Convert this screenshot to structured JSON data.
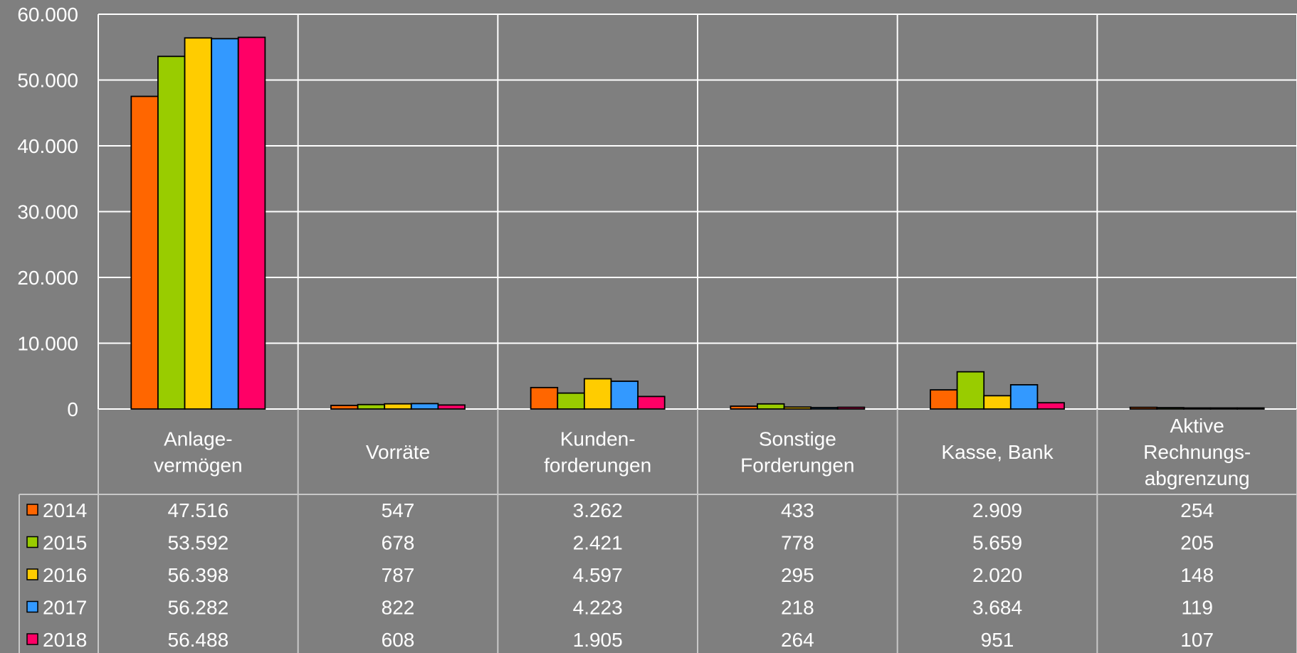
{
  "chart_data": {
    "type": "bar",
    "title": "",
    "xlabel": "",
    "ylabel": "",
    "ylim": [
      0,
      60000
    ],
    "yticks": [
      0,
      10000,
      20000,
      30000,
      40000,
      50000,
      60000
    ],
    "ytick_labels": [
      "0",
      "10.000",
      "20.000",
      "30.000",
      "40.000",
      "50.000",
      "60.000"
    ],
    "grid": true,
    "legend": "data-table-left",
    "categories": [
      [
        "Anlage-",
        "vermögen"
      ],
      [
        "Vorräte"
      ],
      [
        "Kunden-",
        "forderungen"
      ],
      [
        "Sonstige",
        "Forderungen"
      ],
      [
        "Kasse, Bank"
      ],
      [
        "Aktive",
        "Rechnungs-",
        "abgrenzung"
      ]
    ],
    "series": [
      {
        "name": "2014",
        "color": "#ff6600",
        "values": [
          47516,
          547,
          3262,
          433,
          2909,
          254
        ],
        "labels": [
          "47.516",
          "547",
          "3.262",
          "433",
          "2.909",
          "254"
        ]
      },
      {
        "name": "2015",
        "color": "#99cc00",
        "values": [
          53592,
          678,
          2421,
          778,
          5659,
          205
        ],
        "labels": [
          "53.592",
          "678",
          "2.421",
          "778",
          "5.659",
          "205"
        ]
      },
      {
        "name": "2016",
        "color": "#ffcc00",
        "values": [
          56398,
          787,
          4597,
          295,
          2020,
          148
        ],
        "labels": [
          "56.398",
          "787",
          "4.597",
          "295",
          "2.020",
          "148"
        ]
      },
      {
        "name": "2017",
        "color": "#3399ff",
        "values": [
          56282,
          822,
          4223,
          218,
          3684,
          119
        ],
        "labels": [
          "56.282",
          "822",
          "4.223",
          "218",
          "3.684",
          "119"
        ]
      },
      {
        "name": "2018",
        "color": "#ff0066",
        "values": [
          56488,
          608,
          1905,
          264,
          951,
          107
        ],
        "labels": [
          "56.488",
          "608",
          "1.905",
          "264",
          "951",
          "107"
        ]
      }
    ]
  }
}
